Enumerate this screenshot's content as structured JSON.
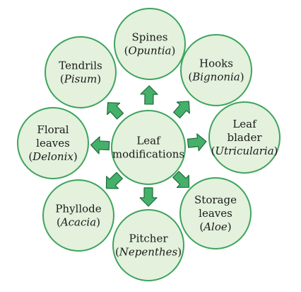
{
  "center": {
    "lines": [
      "Leaf",
      "modifications"
    ]
  },
  "nodes": [
    {
      "id": "spines",
      "lines": [
        "Spines"
      ],
      "species": "Opuntia"
    },
    {
      "id": "hooks",
      "lines": [
        "Hooks"
      ],
      "species": "Bignonia"
    },
    {
      "id": "leaf-blader",
      "lines": [
        "Leaf",
        "blader"
      ],
      "species": "Utricularia"
    },
    {
      "id": "storage-leaves",
      "lines": [
        "Storage",
        "leaves"
      ],
      "species": "Aloe"
    },
    {
      "id": "pitcher",
      "lines": [
        "Pitcher"
      ],
      "species": "Nepenthes"
    },
    {
      "id": "phyllode",
      "lines": [
        "Phyllode"
      ],
      "species": "Acacia"
    },
    {
      "id": "floral-leaves",
      "lines": [
        "Floral",
        "leaves"
      ],
      "species": "Delonix"
    },
    {
      "id": "tendrils",
      "lines": [
        "Tendrils"
      ],
      "species": "Pisum"
    }
  ],
  "colors": {
    "circle_fill": "#e3f1dd",
    "circle_stroke": "#3fa45c",
    "arrow_fill": "#45b06a",
    "arrow_stroke": "#1e6b3a"
  }
}
